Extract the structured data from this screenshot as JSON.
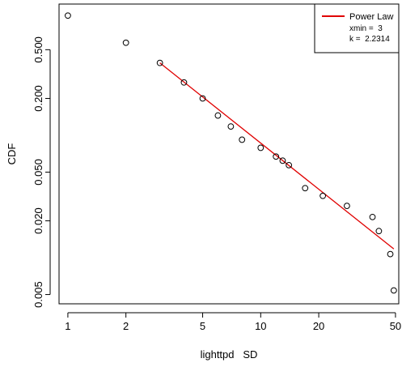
{
  "chart_data": {
    "type": "scatter",
    "x_scale": "log",
    "y_scale": "log",
    "xlabel": "lighttpd   SD",
    "ylabel": "CDF",
    "xlim": [
      0.9,
      52
    ],
    "ylim": [
      0.0042,
      1.18
    ],
    "x_ticks": [
      1,
      2,
      5,
      10,
      20,
      50
    ],
    "x_tick_labels": [
      "1",
      "2",
      "5",
      "10",
      "20",
      "50"
    ],
    "y_ticks": [
      0.005,
      0.02,
      0.05,
      0.2,
      0.5
    ],
    "y_tick_labels": [
      "0.005",
      "0.020",
      "0.050",
      "0.200",
      "0.500"
    ],
    "series": [
      {
        "marker": "open-circle",
        "color": "#000000",
        "points": [
          {
            "x": 1,
            "y": 0.95
          },
          {
            "x": 2,
            "y": 0.57
          },
          {
            "x": 3,
            "y": 0.39
          },
          {
            "x": 4,
            "y": 0.27
          },
          {
            "x": 5,
            "y": 0.2
          },
          {
            "x": 6,
            "y": 0.145
          },
          {
            "x": 7,
            "y": 0.118
          },
          {
            "x": 8,
            "y": 0.092
          },
          {
            "x": 10,
            "y": 0.079
          },
          {
            "x": 12,
            "y": 0.067
          },
          {
            "x": 13,
            "y": 0.062
          },
          {
            "x": 14,
            "y": 0.057
          },
          {
            "x": 17,
            "y": 0.037
          },
          {
            "x": 21,
            "y": 0.032
          },
          {
            "x": 28,
            "y": 0.0265
          },
          {
            "x": 38,
            "y": 0.0215
          },
          {
            "x": 41,
            "y": 0.0165
          },
          {
            "x": 47,
            "y": 0.0107
          },
          {
            "x": 49,
            "y": 0.0054
          }
        ]
      },
      {
        "type": "line",
        "color": "#e00000",
        "x": [
          3,
          49
        ],
        "y": [
          0.39,
          0.0118
        ]
      }
    ],
    "legend": {
      "position": "top-right",
      "label": "Power Law",
      "lines": [
        "xmin =  3",
        "k =  2.2314"
      ]
    }
  }
}
